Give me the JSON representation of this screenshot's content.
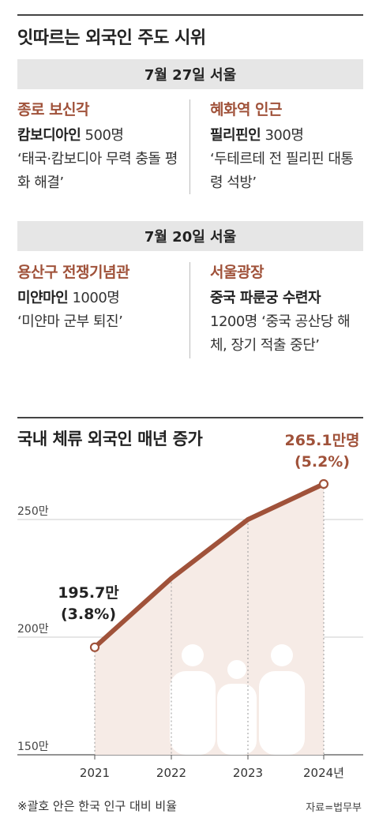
{
  "title": "잇따르는 외국인 주도 시위",
  "sections": [
    {
      "date": "7월 27일 서울",
      "items": [
        {
          "location": "종로 보신각",
          "group": "캄보디아인",
          "count": "500명",
          "text": "‘태국·캄보디아 무력 충돌 평화 해결’"
        },
        {
          "location": "혜화역 인근",
          "group": "필리핀인",
          "count": "300명",
          "text": "‘두테르테 전 필리핀 대통령 석방’"
        }
      ]
    },
    {
      "date": "7월 20일 서울",
      "items": [
        {
          "location": "용산구 전쟁기념관",
          "group": "미얀마인",
          "count": "1000명",
          "text": "‘미얀마 군부 퇴진’"
        },
        {
          "location": "서울광장",
          "group": "중국 파룬궁 수련자",
          "count": "1200명",
          "text": "‘중국 공산당 해체, 장기 적출 중단’"
        }
      ]
    }
  ],
  "chart_data": {
    "type": "area",
    "title": "국내 체류 외국인 매년 증가",
    "categories": [
      "2021",
      "2022",
      "2023",
      "2024년"
    ],
    "values": [
      195.7,
      225,
      250,
      265.1
    ],
    "ylim": [
      150,
      270
    ],
    "yticks": [
      150,
      200,
      250
    ],
    "ytick_labels": [
      "150만",
      "200만",
      "250만"
    ],
    "annotations": [
      {
        "index": 0,
        "value_label": "195.7만",
        "pct_label": "(3.8%)"
      },
      {
        "index": 3,
        "value_label": "265.1만명",
        "pct_label": "(5.2%)"
      }
    ],
    "line_color": "#a0523a",
    "fill_color": "#f6ebe6",
    "grid": true
  },
  "footnote": "※괄호 안은 한국 인구 대비 비율",
  "source": "자료=법무부"
}
